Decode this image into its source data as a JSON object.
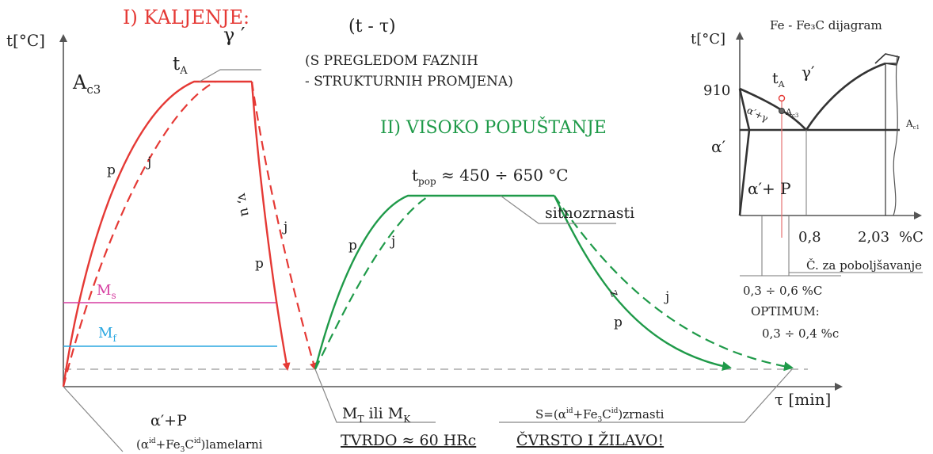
{
  "colors": {
    "kaljenje": "#e53935",
    "popustanje": "#1f9a49",
    "ms_line": "#d63ca0",
    "mf_line": "#2aa7e0",
    "axis": "#555555",
    "text": "#222222",
    "leader": "#888888",
    "dashed_base": "#aaaaaa"
  },
  "main": {
    "y_axis_label": "t[°C]",
    "x_axis_label": "τ [min]",
    "ac3_main": "A",
    "ac3_sub": "c3",
    "title_kaljenje": "I) KALJENJE:",
    "t_tau": "(t - τ)",
    "subtitle_line1": "(S PREGLEDOM FAZNIH",
    "subtitle_line2": "- STRUKTURNIH PROMJENA)",
    "ta_main": "t",
    "ta_sub": "A",
    "gamma": "γ ′",
    "p1": "p",
    "j1": "j",
    "vu": "v, u",
    "j2": "j",
    "p2": "p",
    "ms_main": "M",
    "ms_sub": "s",
    "mf_main": "M",
    "mf_sub": "f",
    "title_popustanje": "II) VISOKO POPUŠTANJE",
    "tpop_main": "t",
    "tpop_sub": "pop",
    "tpop_value": " ≈ 450 ÷ 650 °C",
    "sitnozrnasti": "sitnozrnasti",
    "p3": "p",
    "j3": "j",
    "z4": "z",
    "j4": "j",
    "p4": "p",
    "alpha_p": "α′+P",
    "lamelarni_a": "(α",
    "lamelarni_b": "+Fe",
    "lamelarni_c": "C",
    "lamelarni_d": ")lamelarni",
    "mt_part1": "M",
    "mt_sub1": "T",
    "mt_mid": " ili M",
    "mt_sub2": "K",
    "tvrdo": "TVRDO ≈ 60 HRc",
    "s_zrnasti_a": "S=(α",
    "s_zrnasti_b": "+Fe",
    "s_zrnasti_c": "C",
    "s_zrnasti_d": ")zrnasti",
    "cvrsto": "ČVRSTO  I  ŽILAVO!",
    "sup_id": "id",
    "sub_3": "3"
  },
  "inset": {
    "title": "Fe - Fe₃C dijagram",
    "y_axis_label": "t[°C]",
    "t910": "910",
    "ta_main": "t",
    "ta_sub": "A",
    "gamma": "γ′",
    "ac3_main": "A",
    "ac3_sub": "c3",
    "ac1_main": "A",
    "ac1_sub": "c1",
    "alpha_gamma": "α′+γ",
    "alpha_prime": "α′",
    "alpha_p": "α′+ P",
    "x08": "0,8",
    "x203": "2,03",
    "pct_c": "%C",
    "poboljsavanje": "Č. za poboljšavanje",
    "range": "0,3 ÷ 0,6 %C",
    "optimum_label": "OPTIMUM:",
    "optimum_value": "0,3 ÷ 0,4 %c"
  }
}
